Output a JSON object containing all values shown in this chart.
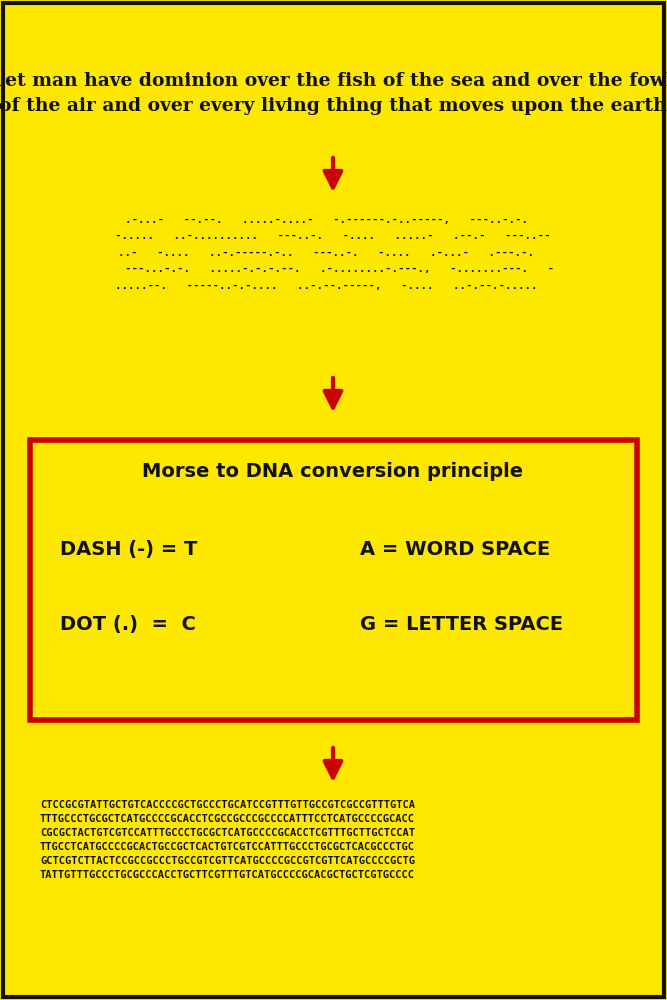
{
  "bg_color": "#FFE800",
  "border_color": "#111111",
  "text_color": "#111111",
  "red_color": "#CC0000",
  "title_text": "Let man have dominion over the fish of the sea and over the fowl\nof the air and over every living thing that moves upon the earth",
  "morse_line1": ".-...-   --.--.   .....-....-   -.------.-..-----,   ---..-.-.  ",
  "morse_line2": "-.....   ..-..........   ---..-.   -....   .....-   .--.-   ---..--",
  "morse_line3": "..-   -....   ..-.-----.-..   ---..-.   -....   .-...-   .---.-.  ",
  "morse_line4": "  ---...-.-.   .....-.-.-.--.   .-........-.---.,   -.......---.   -",
  "morse_line5": ".....--.   -----..-.-....   ..-.--.-----,   -....   ..-.--.-.....  ",
  "box_title": "Morse to DNA conversion principle",
  "dash_line": "DASH (-) = T",
  "dot_line": "DOT (.)  =  C",
  "word_space": "A = WORD SPACE",
  "letter_space": "G = LETTER SPACE",
  "dna_text": "CTCCGCGTATTGCTGTCACCCCGCTGCCCTGCATCCGTTTGTTGCCGTCGCCGTTTGTCA\nTTTGCCCTGCGCTCATGCCCCGCACCTCGCCGCCCGCCCCATTTCCTCATGCCCCGCACC\nCGCGCTACTGTCGTCCATTTGCCCTGCGCTCATGCCCCGCACCTCGTTTGCTTGCTCCAT\nTTGCCTCATGCCCCGCACTGCCGCTCACTGTCGTCCATTTGCCCTGCGCTCACGCCCTGC\nGCTCGTCTTACTCCGCCGCCCTGCCGTCGTTCATGCCCCGCCGTCGTTCATGCCCCGCTG\nTATTGTTTGCCCTGCGCCCACCTGCTTCGTTTGTCATGCCCCGCACGCTGCTCGTGCCCC"
}
